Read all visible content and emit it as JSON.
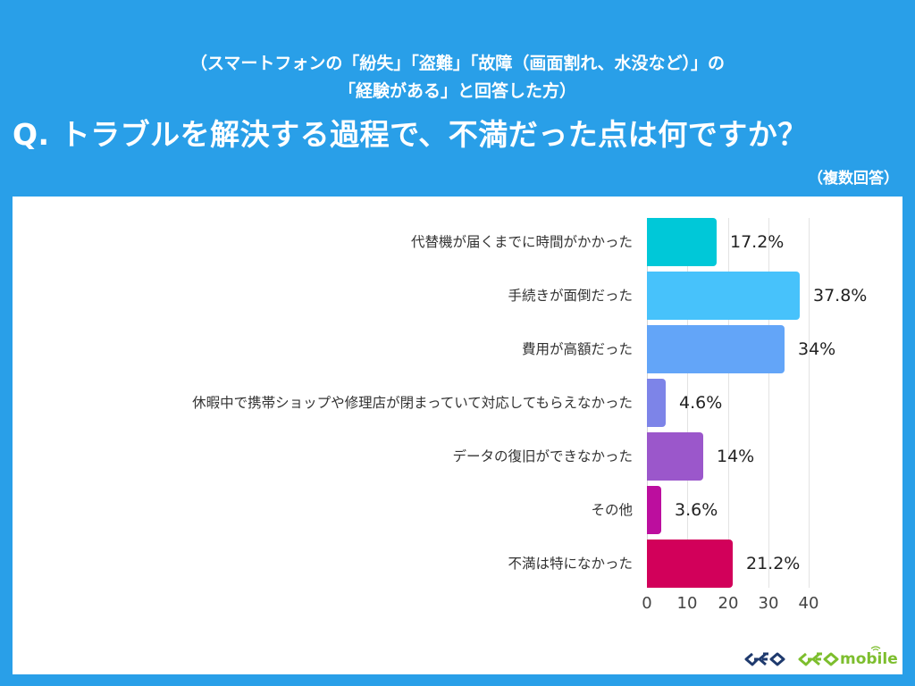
{
  "header": {
    "subtitle_line1": "（スマートフォンの「紛失」「盗難」「故障（画面割れ、水没など）」の",
    "subtitle_line2": "「経験がある」と回答した方）",
    "question": "Q. トラブルを解決する過程で、不満だった点は何ですか？",
    "note": "（複数回答）"
  },
  "colors": {
    "background": "#299FE8",
    "panel": "#FFFFFF",
    "logo_geo": "#1F3A6E",
    "logo_geo_mobile": "#7DBE2E"
  },
  "chart_data": {
    "type": "bar",
    "orientation": "horizontal",
    "title": "Q. トラブルを解決する過程で、不満だった点は何ですか？",
    "subtitle": "（スマートフォンの「紛失」「盗難」「故障（画面割れ、水没など）」の「経験がある」と回答した方）",
    "note": "（複数回答）",
    "xlabel": "",
    "ylabel": "",
    "xlim": [
      0,
      40
    ],
    "ticks": [
      "0",
      "10",
      "20",
      "30",
      "40"
    ],
    "grid": true,
    "legend": false,
    "categories": [
      "代替機が届くまでに時間がかかった",
      "手続きが面倒だった",
      "費用が高額だった",
      "休暇中で携帯ショップや修理店が閉まっていて対応してもらえなかった",
      "データの復旧ができなかった",
      "その他",
      "不満は特になかった"
    ],
    "values": [
      17.2,
      37.8,
      34,
      4.6,
      14,
      3.6,
      21.2
    ],
    "value_labels": [
      "17.2%",
      "37.8%",
      "34%",
      "4.6%",
      "14%",
      "3.6%",
      "21.2%"
    ],
    "bar_colors": [
      "#00C8D8",
      "#47C2FB",
      "#63A5F8",
      "#7D84E8",
      "#9B57CB",
      "#BC0E9E",
      "#D2005A"
    ],
    "unit": "%"
  },
  "logos": {
    "geo": "GEO",
    "geo_mobile_text": "mobile"
  }
}
